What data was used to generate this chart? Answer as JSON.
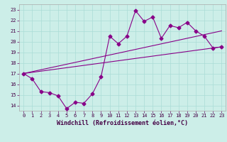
{
  "xlabel": "Windchill (Refroidissement éolien,°C)",
  "xlim": [
    -0.5,
    23.5
  ],
  "ylim": [
    13.5,
    23.5
  ],
  "yticks": [
    14,
    15,
    16,
    17,
    18,
    19,
    20,
    21,
    22,
    23
  ],
  "xticks": [
    0,
    1,
    2,
    3,
    4,
    5,
    6,
    7,
    8,
    9,
    10,
    11,
    12,
    13,
    14,
    15,
    16,
    17,
    18,
    19,
    20,
    21,
    22,
    23
  ],
  "bg_color": "#cceee8",
  "line_color": "#880088",
  "data_x": [
    0,
    1,
    2,
    3,
    4,
    5,
    6,
    7,
    8,
    9,
    10,
    11,
    12,
    13,
    14,
    15,
    16,
    17,
    18,
    19,
    20,
    21,
    22,
    23
  ],
  "data_y": [
    17.0,
    16.5,
    15.3,
    15.2,
    14.9,
    13.7,
    14.3,
    14.2,
    15.1,
    16.7,
    20.5,
    19.8,
    20.5,
    22.9,
    21.9,
    22.3,
    20.3,
    21.5,
    21.3,
    21.8,
    21.0,
    20.5,
    19.4,
    19.5
  ],
  "line1_x": [
    0,
    23
  ],
  "line1_y": [
    17.0,
    19.5
  ],
  "line2_x": [
    0,
    23
  ],
  "line2_y": [
    17.0,
    21.0
  ],
  "marker": "D",
  "marker_size": 2.5,
  "line_width": 0.8,
  "grid_color": "#aadcd6",
  "tick_fontsize": 5.0,
  "label_fontsize": 6.0
}
